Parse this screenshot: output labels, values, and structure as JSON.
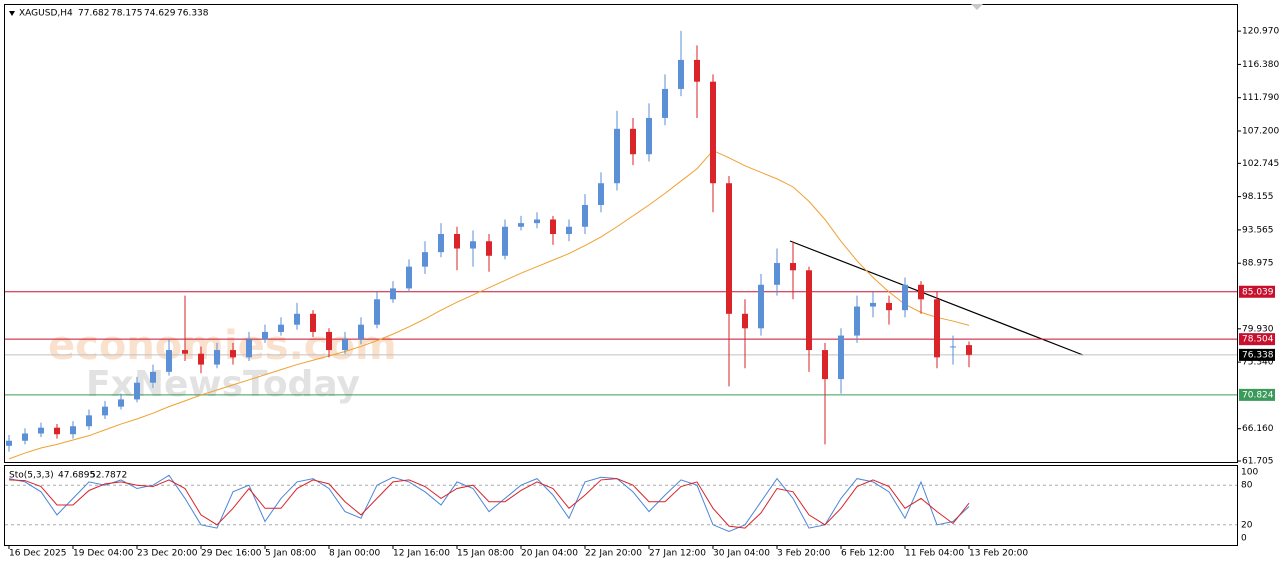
{
  "chart_data": {
    "type": "candlestick",
    "symbol": "XAGUSD,H4",
    "watermarks": [
      "economies.com",
      "FxNewsToday"
    ],
    "up_color": "#5b8fd6",
    "down_color": "#d9242a",
    "open": [
      63.8,
      64.5,
      65.5,
      66.3,
      65.4,
      66.5,
      68,
      69.2,
      70.2,
      72.5,
      74,
      77,
      76.5,
      75,
      77,
      76,
      78.5,
      79.5,
      80.5,
      82,
      79.5,
      77,
      78.5,
      80.5,
      84,
      85.5,
      88.5,
      90.5,
      93,
      91,
      92,
      90,
      94,
      94.5,
      95,
      93,
      94,
      97,
      100,
      107.5,
      104,
      109,
      113,
      117,
      114,
      100,
      82,
      80,
      86,
      89,
      88,
      77,
      73,
      79,
      83,
      83.5,
      82.5,
      86,
      84,
      77.5,
      77.682
    ],
    "high": [
      65.3,
      66.2,
      67,
      66.8,
      67.2,
      68.8,
      70,
      71,
      73.3,
      75,
      78.5,
      84.5,
      77.5,
      78,
      78,
      79.5,
      80.5,
      81.5,
      83.5,
      82.5,
      80,
      79.5,
      81.5,
      85,
      86.5,
      89.5,
      92,
      94.5,
      94,
      93.5,
      93,
      95,
      95.5,
      96,
      95.5,
      95,
      98.5,
      101.5,
      110,
      109,
      111,
      115,
      121,
      119,
      115,
      101,
      84,
      87.5,
      91,
      92,
      88.5,
      78,
      80,
      84.5,
      85,
      84.5,
      87,
      86.5,
      85,
      79,
      78.175
    ],
    "low": [
      63,
      64,
      65,
      64.8,
      64.8,
      66,
      67.5,
      68.8,
      69.8,
      71.8,
      73.5,
      75.5,
      73.8,
      74.5,
      75,
      75.5,
      78,
      79,
      79.8,
      78.8,
      76,
      76.5,
      77.8,
      80,
      83.5,
      85,
      87.5,
      89.8,
      88,
      88.5,
      87.8,
      89.5,
      93.5,
      93.8,
      91.5,
      92,
      93,
      96,
      99,
      102.5,
      103,
      108,
      112,
      109,
      96,
      72,
      74.5,
      79,
      84.5,
      84,
      74,
      64,
      71,
      78,
      81.5,
      80.5,
      81.5,
      82,
      74.5,
      75,
      74.629
    ],
    "close": [
      64.5,
      65.5,
      66.3,
      65.4,
      66.5,
      68,
      69.2,
      70.2,
      72.5,
      74,
      77,
      76.5,
      75,
      77,
      76,
      78.5,
      79.5,
      80.5,
      82,
      79.5,
      77,
      78.5,
      80.5,
      84,
      85.5,
      88.5,
      90.5,
      93,
      91,
      92,
      90,
      94,
      94.5,
      95,
      93,
      94,
      97,
      100,
      107.5,
      104,
      109,
      113,
      117,
      114,
      100,
      82,
      80,
      86,
      89,
      88,
      77,
      73,
      79,
      83,
      83.5,
      82.5,
      86,
      84,
      76,
      77.5,
      76.338
    ],
    "ma": {
      "color": "#f0a030",
      "values": [
        62,
        62.8,
        63.5,
        64,
        64.6,
        65.2,
        66,
        66.8,
        67.5,
        68.3,
        69.2,
        70,
        70.8,
        71.5,
        72.2,
        72.9,
        73.6,
        74.3,
        75,
        75.6,
        76.2,
        76.8,
        77.5,
        78.3,
        79.2,
        80.2,
        81.3,
        82.5,
        83.6,
        84.6,
        85.6,
        86.6,
        87.6,
        88.5,
        89.4,
        90.3,
        91.4,
        92.6,
        94,
        95.5,
        97,
        98.6,
        100.3,
        102,
        104.5,
        103.5,
        102.4,
        101.5,
        100.6,
        99.5,
        97.5,
        95,
        92,
        89.3,
        87,
        85,
        83.3,
        82.2,
        81.5,
        81,
        80.4
      ]
    },
    "levels": [
      {
        "value": 85.039,
        "color": "#c8102e"
      },
      {
        "value": 78.504,
        "color": "#c8102e"
      },
      {
        "value": 76.338,
        "color": "#000000",
        "line_color": "#c0c0c0"
      },
      {
        "value": 70.824,
        "color": "#3a9a5a"
      }
    ],
    "xlim": [
      -0.25,
      76.75
    ],
    "ylim": [
      61.57,
      124.57
    ],
    "yticks": [
      61.705,
      {
        "value": 66.16,
        "label": "66.160"
      },
      {
        "value": 75.34,
        "label": "75.340"
      },
      {
        "value": 79.93,
        "label": "79.930"
      },
      88.975,
      93.565,
      98.155,
      102.745,
      {
        "value": 107.2,
        "label": "107.200"
      },
      {
        "value": 111.79,
        "label": "111.790"
      },
      {
        "value": 116.38,
        "label": "116.380"
      },
      {
        "value": 120.97,
        "label": "120.970"
      }
    ],
    "xticks": [
      {
        "value": 0,
        "label": "16 Dec 2025"
      },
      {
        "value": 4,
        "label": "19 Dec 04:00"
      },
      {
        "value": 8,
        "label": "23 Dec 20:00"
      },
      {
        "value": 12,
        "label": "29 Dec 16:00"
      },
      {
        "value": 16,
        "label": "5 Jan 08:00"
      },
      {
        "value": 20,
        "label": "8 Jan 00:00"
      },
      {
        "value": 24,
        "label": "12 Jan 16:00"
      },
      {
        "value": 28,
        "label": "15 Jan 08:00"
      },
      {
        "value": 32,
        "label": "20 Jan 04:00"
      },
      {
        "value": 36,
        "label": "22 Jan 20:00"
      },
      {
        "value": 40,
        "label": "27 Jan 12:00"
      },
      {
        "value": 44,
        "label": "30 Jan 04:00"
      },
      {
        "value": 48,
        "label": "3 Feb 20:00"
      },
      {
        "value": 52,
        "label": "6 Feb 12:00"
      },
      {
        "value": 56,
        "label": "11 Feb 04:00"
      },
      {
        "value": 60,
        "label": "13 Feb 20:00"
      }
    ],
    "stochastic": {
      "name": "Sto(5,3,3)",
      "ylim": [
        -10.6,
        109.1
      ],
      "yticks": [
        0,
        20,
        80,
        100
      ],
      "series": [
        {
          "color": "#4a86d8",
          "values": [
            90,
            85,
            70,
            35,
            60,
            85,
            80,
            88,
            75,
            80,
            95,
            60,
            20,
            15,
            70,
            80,
            25,
            60,
            85,
            90,
            75,
            40,
            30,
            80,
            92,
            85,
            70,
            50,
            85,
            75,
            40,
            60,
            80,
            90,
            65,
            30,
            85,
            92,
            90,
            70,
            40,
            65,
            88,
            80,
            20,
            10,
            20,
            55,
            90,
            60,
            15,
            20,
            60,
            90,
            85,
            70,
            30,
            85,
            20,
            25,
            47.6895
          ]
        },
        {
          "color": "#d9242a",
          "values": [
            88,
            87,
            78,
            50,
            50,
            72,
            82,
            85,
            80,
            78,
            88,
            75,
            35,
            20,
            45,
            75,
            45,
            45,
            75,
            88,
            82,
            55,
            35,
            60,
            85,
            88,
            78,
            60,
            75,
            80,
            55,
            55,
            72,
            85,
            75,
            45,
            65,
            88,
            90,
            80,
            55,
            55,
            78,
            85,
            45,
            18,
            15,
            38,
            75,
            70,
            35,
            20,
            45,
            78,
            88,
            78,
            45,
            60,
            40,
            22,
            52.7872
          ]
        }
      ]
    }
  }
}
